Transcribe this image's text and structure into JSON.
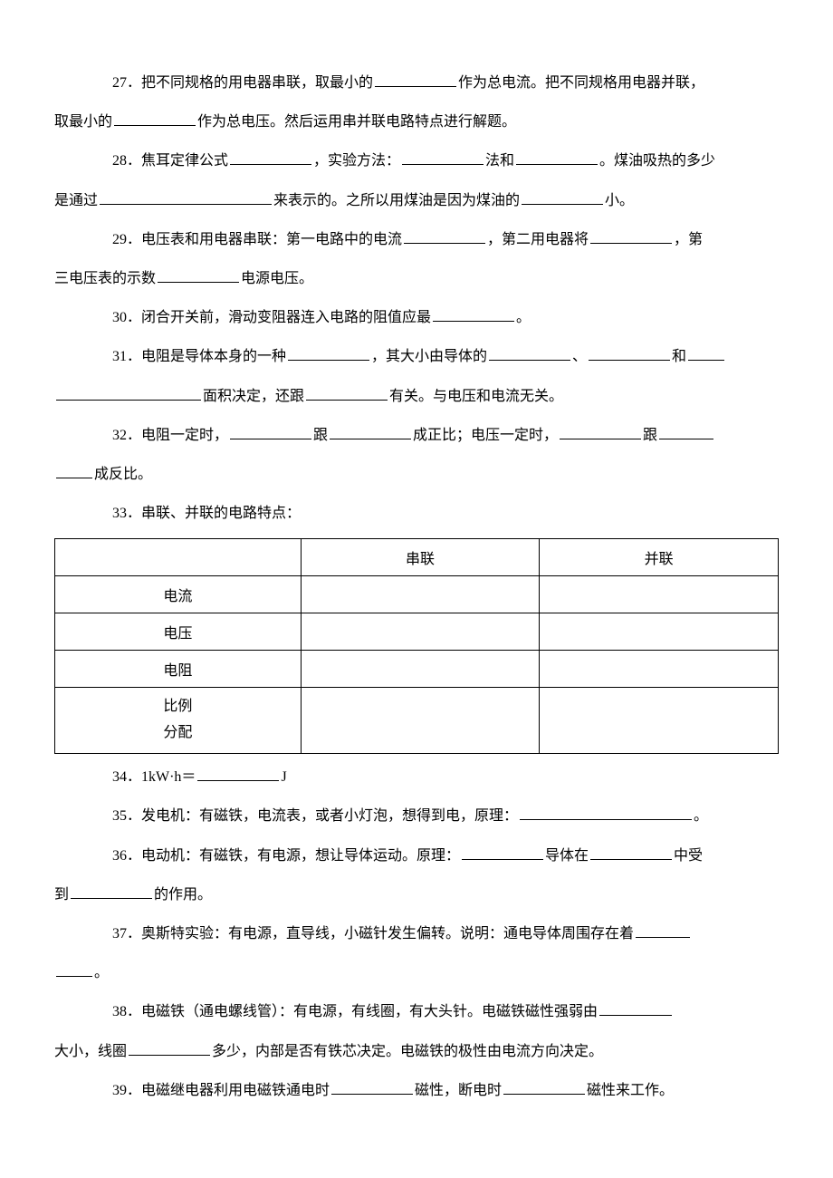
{
  "q27": {
    "p1a": "27．把不同规格的用电器串联，取最小的",
    "p1b": "作为总电流。把不同规格用电器并联，",
    "p2a": "取最小的",
    "p2b": "作为总电压。然后运用串并联电路特点进行解题。"
  },
  "q28": {
    "p1a": "28．焦耳定律公式",
    "p1b": "，实验方法：",
    "p1c": "法和",
    "p1d": "。煤油吸热的多少",
    "p2a": "是通过",
    "p2b": "来表示的。之所以用煤油是因为煤油的",
    "p2c": "小。"
  },
  "q29": {
    "p1a": "29．电压表和用电器串联：第一电路中的电流",
    "p1b": "，第二用电器将",
    "p1c": "，第",
    "p2a": "三电压表的示数",
    "p2b": "电源电压。"
  },
  "q30": {
    "a": "30．闭合开关前，滑动变阻器连入电路的阻值应最",
    "b": "。"
  },
  "q31": {
    "p1a": "31．电阻是导体本身的一种",
    "p1b": "，其大小由导体的",
    "p1c": "、",
    "p1d": "和",
    "p2a": "面积决定，还跟",
    "p2b": "有关。与电压和电流无关。"
  },
  "q32": {
    "p1a": "32．电阻一定时，",
    "p1b": "跟",
    "p1c": "成正比；电压一定时，",
    "p1d": "跟",
    "p2a": "成反比。"
  },
  "q33": {
    "title": "33．串联、并联的电路特点："
  },
  "table": {
    "head": {
      "c1": "",
      "c2": "串联",
      "c3": "并联"
    },
    "rows": [
      {
        "label": "电流",
        "c2": "",
        "c3": ""
      },
      {
        "label": "电压",
        "c2": "",
        "c3": ""
      },
      {
        "label": "电阻",
        "c2": "",
        "c3": ""
      }
    ],
    "lastRow": {
      "line1": "比例",
      "line2": "分配",
      "c2": "",
      "c3": ""
    }
  },
  "q34": {
    "a": "34．1kW·h＝",
    "b": "J"
  },
  "q35": {
    "a": "35．发电机：有磁铁，电流表，或者小灯泡，想得到电，原理：",
    "b": "。"
  },
  "q36": {
    "p1a": "36．电动机：有磁铁，有电源，想让导体运动。原理：",
    "p1b": "导体在",
    "p1c": "中受",
    "p2a": "到",
    "p2b": "的作用。"
  },
  "q37": {
    "p1a": "37．奥斯特实验：有电源，直导线，小磁针发生偏转。说明：通电导体周围存在着",
    "p2a": "。"
  },
  "q38": {
    "p1a": "38．电磁铁（通电螺线管）：有电源，有线圈，有大头针。电磁铁磁性强弱由",
    "p2a": "大小，线圈",
    "p2b": "多少，内部是否有铁芯决定。电磁铁的极性由电流方向决定。"
  },
  "q39": {
    "a": "39．电磁继电器利用电磁铁通电时",
    "b": "磁性，断电时",
    "c": "磁性来工作。"
  },
  "colors": {
    "text": "#000000",
    "bg": "#ffffff",
    "border": "#000000"
  },
  "typography": {
    "font_family": "SimSun",
    "font_size_pt": 12,
    "line_height": 2.7
  }
}
